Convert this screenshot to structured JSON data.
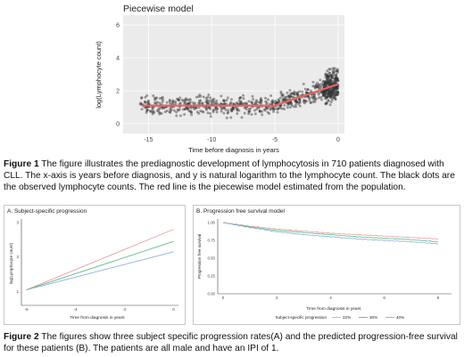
{
  "figure1": {
    "title": "Piecewise model",
    "caption_label": "Figure 1",
    "caption_text": " The figure illustrates the prediagnostic development of lymphocytosis in 710 patients diagnosed with CLL. The x-axis is years before diagnosis, and y is natural logarithm to the lymphocyte count. The black dots are the observed lymphocyte counts. The red line is the piecewise model estimated from the population.",
    "chart_data": {
      "type": "scatter",
      "xlabel": "Time before diagnosis in years",
      "ylabel": "log(Lymphocyte count)",
      "xlim": [
        -17,
        0.5
      ],
      "ylim": [
        -0.6,
        6.6
      ],
      "xticks": [
        -15,
        -10,
        -5,
        0
      ],
      "xtick_labels": [
        "-15",
        "-10",
        "-5",
        "0"
      ],
      "yticks": [
        0,
        2,
        4,
        6
      ],
      "ytick_labels": [
        "0",
        "2",
        "4",
        "6"
      ],
      "grid": true,
      "series": [
        {
          "type": "line",
          "x": [
            -15.5,
            -5,
            0
          ],
          "y": [
            1.1,
            1.1,
            2.4
          ]
        }
      ],
      "point_color": "#333333",
      "line_color": "#e36464"
    }
  },
  "figure2": {
    "caption_label": "Figure 2",
    "caption_text": " The figures show three subject specific progression rates(A) and the predicted progression-free survival for these patients (B). The patients are all male and have an IPI of 1.",
    "panel_a": {
      "title": "A. Subject-specific progression",
      "chart_data": {
        "type": "line",
        "xlabel": "Time from diagnosis in years",
        "ylabel": "log(Lymphocyte count)",
        "xlim": [
          -6.2,
          0.2
        ],
        "ylim": [
          0.6,
          3.1
        ],
        "xticks": [
          -6,
          -4,
          -2,
          0
        ],
        "xtick_labels": [
          "-6",
          "-4",
          "-2",
          "0"
        ],
        "yticks": [
          1,
          2,
          3
        ],
        "ytick_labels": [
          "1",
          "2",
          "3"
        ],
        "series": [
          {
            "x": [
              -6,
              0
            ],
            "y": [
              1.05,
              2.8
            ],
            "color": "#e8a0a0"
          },
          {
            "x": [
              -6,
              0
            ],
            "y": [
              1.05,
              2.45
            ],
            "color": "#5dbb8a"
          },
          {
            "x": [
              -6,
              0
            ],
            "y": [
              1.05,
              2.15
            ],
            "color": "#8ab0d8"
          }
        ]
      }
    },
    "panel_b": {
      "title": "B. Progression free survival model",
      "chart_data": {
        "type": "line",
        "xlabel": "Time from diagnosis in years",
        "ylabel": "Progression free survival",
        "xlim": [
          -0.2,
          8.5
        ],
        "ylim": [
          0,
          1.05
        ],
        "xticks": [
          0,
          2,
          4,
          6,
          8
        ],
        "xtick_labels": [
          "0",
          "2",
          "4",
          "6",
          "8"
        ],
        "yticks": [
          0,
          0.25,
          0.5,
          0.75,
          1.0
        ],
        "ytick_labels": [
          "0.00",
          "0.25",
          "0.50",
          "0.75",
          "1.00"
        ],
        "legend_title": "Subject-specific progression",
        "legend_placement": "bottom",
        "series": [
          {
            "name": "22%",
            "x": [
              0,
              1,
              2,
              3,
              4,
              5,
              6,
              7,
              8
            ],
            "y": [
              1.0,
              0.95,
              0.91,
              0.88,
              0.85,
              0.83,
              0.81,
              0.79,
              0.77
            ],
            "color": "#e8a0a0"
          },
          {
            "name": "30%",
            "x": [
              0,
              1,
              2,
              3,
              4,
              5,
              6,
              7,
              8
            ],
            "y": [
              1.0,
              0.94,
              0.89,
              0.86,
              0.83,
              0.8,
              0.78,
              0.76,
              0.73
            ],
            "color": "#5dbb8a"
          },
          {
            "name": "40%",
            "x": [
              0,
              1,
              2,
              3,
              4,
              5,
              6,
              7,
              8
            ],
            "y": [
              1.0,
              0.93,
              0.87,
              0.83,
              0.8,
              0.77,
              0.75,
              0.73,
              0.7
            ],
            "color": "#8ab0d8"
          }
        ]
      }
    }
  }
}
